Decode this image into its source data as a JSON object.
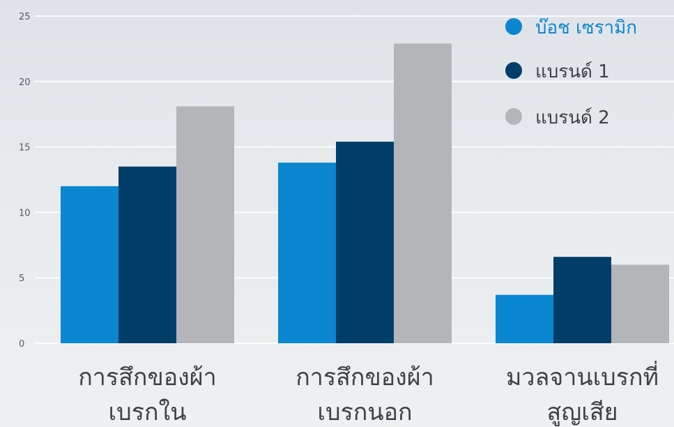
{
  "chart_data": {
    "type": "bar",
    "categories": [
      [
        "การสึกของผ้า",
        "เบรกใน"
      ],
      [
        "การสึกของผ้า",
        "เบรกนอก"
      ],
      [
        "มวลจานเบรกที่",
        "สูญเสีย"
      ]
    ],
    "series": [
      {
        "name": "บ๊อช เซรามิก",
        "values": [
          12.0,
          13.8,
          3.7
        ],
        "color": "#0b86d0"
      },
      {
        "name": "แบรนด์ 1",
        "values": [
          13.5,
          15.4,
          6.6
        ],
        "color": "#003e6a"
      },
      {
        "name": "แบรนด์ 2",
        "values": [
          18.1,
          22.9,
          6.0
        ],
        "color": "#b3b5b8"
      }
    ],
    "y_ticks": [
      "0",
      "5",
      "10",
      "15",
      "20",
      "25"
    ],
    "ylim": [
      0,
      25
    ],
    "grid": true,
    "legend_position": "top-right",
    "legend_text_colors": [
      "#0b86d0",
      "#3e4247",
      "#3e4247"
    ]
  }
}
